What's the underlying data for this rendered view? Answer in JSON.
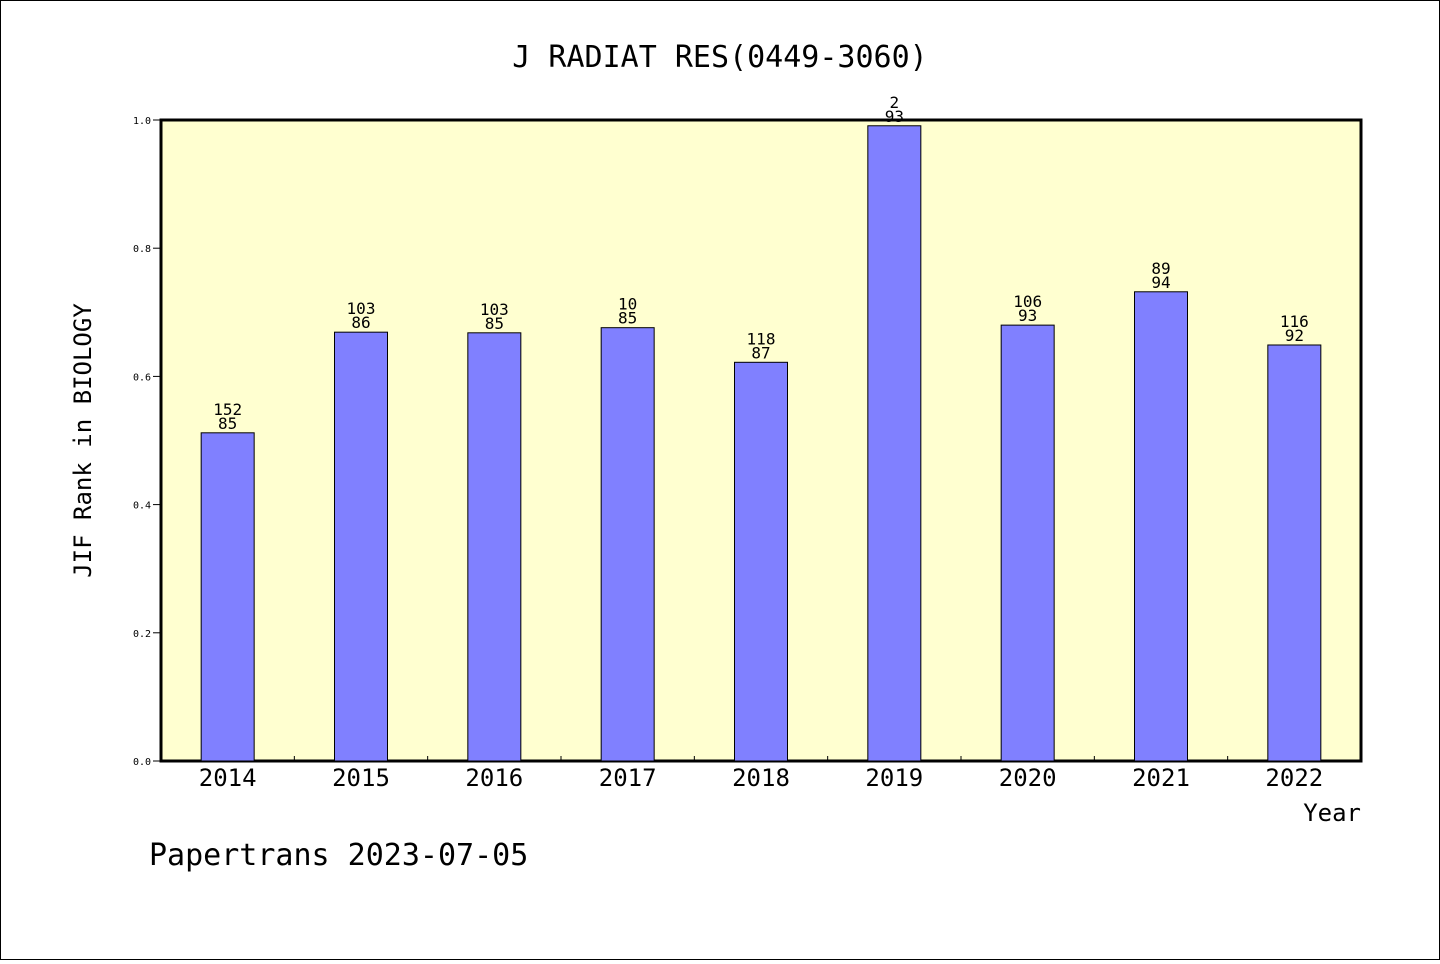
{
  "chart_data": {
    "type": "bar",
    "title": "J RADIAT RES(0449-3060)",
    "xlabel": "Year",
    "ylabel": "JIF Rank in BIOLOGY",
    "ylim": [
      0,
      1.0
    ],
    "yticks": [
      "0.0",
      "0.2",
      "0.4",
      "0.6",
      "0.8",
      "1.0"
    ],
    "categories": [
      "2014",
      "2015",
      "2016",
      "2017",
      "2018",
      "2019",
      "2020",
      "2021",
      "2022"
    ],
    "values": [
      0.512,
      0.669,
      0.668,
      0.676,
      0.622,
      0.991,
      0.68,
      0.732,
      0.649
    ],
    "labels_top": [
      "152",
      "103",
      "103",
      "10",
      "118",
      "2",
      "106",
      "89",
      "116"
    ],
    "labels_bottom": [
      "85",
      "86",
      "85",
      "85",
      "87",
      "93",
      "93",
      "94",
      "92"
    ],
    "grid": false,
    "colors": {
      "plot_background": "#FFFFD0",
      "bar": "#8080FF",
      "bar_edge": "#000000"
    }
  },
  "footer": "Papertrans 2023-07-05"
}
